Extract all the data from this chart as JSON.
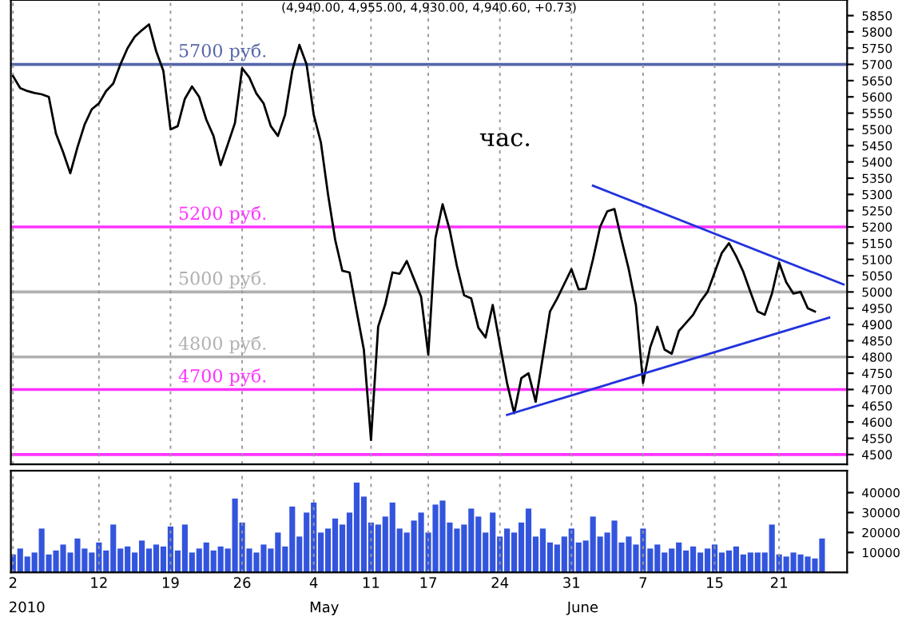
{
  "chart_data": [
    {
      "type": "line",
      "title": "(4,940.00, 4,955.00, 4,930.00, 4,940.60, +0.73)",
      "subtitle": "час.",
      "categories": [
        "2",
        null,
        null,
        null,
        null,
        null,
        null,
        null,
        null,
        null,
        null,
        null,
        "12",
        null,
        null,
        null,
        null,
        null,
        null,
        null,
        null,
        null,
        "19",
        null,
        null,
        null,
        null,
        null,
        null,
        null,
        null,
        null,
        "26",
        null,
        null,
        null,
        null,
        null,
        null,
        null,
        null,
        null,
        "4",
        null,
        null,
        null,
        null,
        null,
        null,
        null,
        "11",
        null,
        null,
        null,
        null,
        null,
        null,
        null,
        "17",
        null,
        null,
        null,
        null,
        null,
        null,
        null,
        null,
        null,
        "24",
        null,
        null,
        null,
        null,
        null,
        null,
        null,
        null,
        null,
        "31",
        null,
        null,
        null,
        null,
        null,
        null,
        null,
        null,
        null,
        "7",
        null,
        null,
        null,
        null,
        null,
        null,
        null,
        null,
        null,
        "15",
        null,
        null,
        null,
        null,
        null,
        null,
        null,
        null,
        "21",
        null,
        null,
        null,
        null,
        null,
        null,
        null,
        null,
        null
      ],
      "series": [
        {
          "color": "#000000",
          "values": [
            5664,
            5627,
            5618,
            5612,
            5608,
            5600,
            5487,
            5430,
            5365,
            5445,
            5515,
            5562,
            5580,
            5618,
            5641,
            5700,
            5750,
            5785,
            5805,
            5823,
            5740,
            5680,
            5500,
            5510,
            5594,
            5632,
            5600,
            5530,
            5480,
            5390,
            5454,
            5520,
            5688,
            5660,
            5610,
            5580,
            5510,
            5480,
            5545,
            5680,
            5760,
            5700,
            5545,
            5460,
            5300,
            5160,
            5065,
            5060,
            4940,
            4823,
            4545,
            4893,
            4963,
            5060,
            5056,
            5095,
            5040,
            4985,
            4807,
            5165,
            5270,
            5190,
            5080,
            4990,
            4980,
            4890,
            4860,
            4960,
            4840,
            4720,
            4627,
            4735,
            4750,
            4662,
            4800,
            4940,
            4980,
            5025,
            5070,
            5008,
            5010,
            5100,
            5200,
            5248,
            5255,
            5160,
            5070,
            4960,
            4720,
            4830,
            4893,
            4823,
            4810,
            4880,
            4905,
            4930,
            4970,
            5000,
            5060,
            5120,
            5150,
            5110,
            5062,
            5000,
            4940,
            4930,
            4995,
            5090,
            5030,
            4995,
            5000,
            4950,
            4940,
            null,
            null,
            null,
            null
          ]
        },
        {
          "color": "#2233dd",
          "values": [
            null,
            null,
            null,
            null,
            null,
            null,
            null,
            null,
            null,
            null,
            null,
            null,
            null,
            null,
            null,
            null,
            null,
            null,
            null,
            null,
            null,
            null,
            null,
            null,
            null,
            null,
            null,
            null,
            null,
            null,
            null,
            null,
            null,
            null,
            null,
            null,
            null,
            null,
            null,
            null,
            null,
            null,
            null,
            null,
            null,
            null,
            null,
            null,
            null,
            null,
            null,
            null,
            null,
            null,
            null,
            null,
            null,
            null,
            null,
            null,
            null,
            null,
            null,
            null,
            null,
            null,
            null,
            null,
            null,
            4622,
            null,
            null,
            null,
            null,
            null,
            null,
            null,
            null,
            null,
            null,
            null,
            null,
            null,
            null,
            null,
            null,
            null,
            null,
            null,
            null,
            null,
            null,
            null,
            null,
            null,
            null,
            null,
            null,
            null,
            null,
            null,
            null,
            null,
            null,
            null,
            null,
            null,
            null,
            null,
            null,
            null,
            null,
            null,
            null,
            4921,
            null,
            null
          ]
        },
        {
          "color": "#2233dd",
          "values": [
            null,
            null,
            null,
            null,
            null,
            null,
            null,
            null,
            null,
            null,
            null,
            null,
            null,
            null,
            null,
            null,
            null,
            null,
            null,
            null,
            null,
            null,
            null,
            null,
            null,
            null,
            null,
            null,
            null,
            null,
            null,
            null,
            null,
            null,
            null,
            null,
            null,
            null,
            null,
            null,
            null,
            null,
            null,
            null,
            null,
            null,
            null,
            null,
            null,
            null,
            null,
            null,
            null,
            null,
            null,
            null,
            null,
            null,
            null,
            null,
            null,
            null,
            null,
            null,
            null,
            null,
            null,
            null,
            null,
            null,
            null,
            null,
            null,
            null,
            null,
            null,
            null,
            null,
            null,
            null,
            null,
            5327,
            null,
            null,
            null,
            null,
            null,
            null,
            null,
            null,
            null,
            null,
            null,
            null,
            null,
            null,
            null,
            null,
            null,
            null,
            null,
            null,
            null,
            null,
            null,
            null,
            null,
            null,
            null,
            null,
            null,
            null,
            null,
            null,
            null,
            null,
            5023
          ]
        }
      ],
      "ylim": [
        4470,
        5898
      ],
      "yticks": [
        4500,
        4550,
        4600,
        4650,
        4700,
        4750,
        4800,
        4850,
        4900,
        4950,
        5000,
        5050,
        5100,
        5150,
        5200,
        5250,
        5300,
        5350,
        5400,
        5450,
        5500,
        5550,
        5600,
        5650,
        5700,
        5750,
        5800,
        5850
      ],
      "ref_lines": [
        {
          "axis": "y",
          "value": 5700,
          "label": "5700 руб.",
          "color": "#5566aa"
        },
        {
          "axis": "y",
          "value": 5200,
          "label": "5200 руб.",
          "color": "#ff33ff"
        },
        {
          "axis": "y",
          "value": 5000,
          "label": "5000 руб.",
          "color": "#b0b0b0"
        },
        {
          "axis": "y",
          "value": 4800,
          "label": "4800 руб.",
          "color": "#b0b0b0"
        },
        {
          "axis": "y",
          "value": 4700,
          "label": "4700 руб.",
          "color": "#ff33ff"
        },
        {
          "axis": "y",
          "value": 4500,
          "color": "#ff33ff"
        }
      ],
      "grid": "x",
      "tick_labels": "y",
      "line_style": "solid"
    },
    {
      "type": "bar",
      "categories": [
        "2",
        null,
        null,
        null,
        null,
        null,
        null,
        null,
        null,
        null,
        null,
        null,
        "12",
        null,
        null,
        null,
        null,
        null,
        null,
        null,
        null,
        null,
        "19",
        null,
        null,
        null,
        null,
        null,
        null,
        null,
        null,
        null,
        "26",
        null,
        null,
        null,
        null,
        null,
        null,
        null,
        null,
        null,
        "4",
        null,
        null,
        null,
        null,
        null,
        null,
        null,
        "11",
        null,
        null,
        null,
        null,
        null,
        null,
        null,
        "17",
        null,
        null,
        null,
        null,
        null,
        null,
        null,
        null,
        null,
        "24",
        null,
        null,
        null,
        null,
        null,
        null,
        null,
        null,
        null,
        "31",
        null,
        null,
        null,
        null,
        null,
        null,
        null,
        null,
        null,
        "7",
        null,
        null,
        null,
        null,
        null,
        null,
        null,
        null,
        null,
        "15",
        null,
        null,
        null,
        null,
        null,
        null,
        null,
        null,
        "21",
        null,
        null,
        null,
        null,
        null,
        null,
        null,
        null,
        null
      ],
      "series": [
        {
          "color": "#3355dd",
          "values": [
            9000,
            12000,
            8000,
            10000,
            22000,
            9000,
            11000,
            14000,
            10000,
            17000,
            12000,
            10000,
            15000,
            11000,
            24000,
            12000,
            13000,
            10000,
            16000,
            12000,
            14000,
            13000,
            23000,
            11000,
            24000,
            10000,
            12000,
            15000,
            11000,
            13000,
            12000,
            37000,
            25000,
            12000,
            10000,
            14000,
            12000,
            20000,
            13000,
            33000,
            18000,
            30000,
            35000,
            20000,
            22000,
            27000,
            24000,
            30000,
            45000,
            38000,
            25000,
            24000,
            28000,
            35000,
            22000,
            20000,
            26000,
            30000,
            20000,
            34000,
            36000,
            25000,
            22000,
            24000,
            32000,
            28000,
            20000,
            30000,
            18000,
            22000,
            20000,
            25000,
            32000,
            18000,
            22000,
            15000,
            14000,
            18000,
            22000,
            15000,
            16000,
            28000,
            18000,
            20000,
            26000,
            15000,
            18000,
            14000,
            22000,
            12000,
            14000,
            10000,
            12000,
            15000,
            11000,
            13000,
            10000,
            12000,
            14000,
            10000,
            11000,
            13000,
            9000,
            10000,
            10000,
            10000,
            24000,
            9000,
            8000,
            10000,
            9000,
            8000,
            7000,
            17000,
            null,
            null,
            null
          ]
        }
      ],
      "ylim": [
        0,
        51000
      ],
      "yticks": [
        10000,
        20000,
        30000,
        40000
      ],
      "annotations": [
        "2010",
        "May",
        "June"
      ],
      "grid": "x"
    }
  ]
}
